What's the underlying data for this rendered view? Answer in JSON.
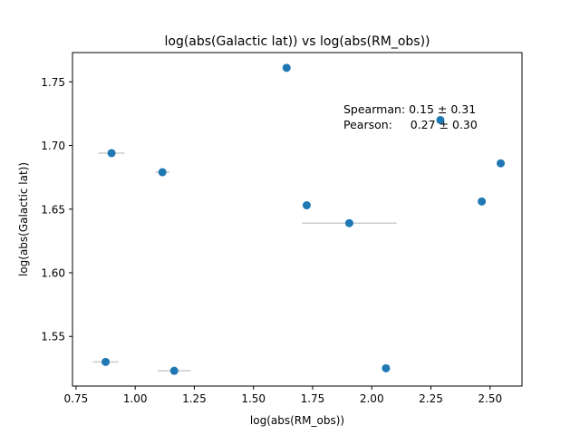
{
  "chart_data": {
    "type": "scatter",
    "title": "log(abs(Galactic lat)) vs log(abs(RM_obs))",
    "xlabel": "log(abs(RM_obs))",
    "ylabel": "log(abs(Galactic lat))",
    "xlim": [
      0.735,
      2.635
    ],
    "ylim": [
      1.511,
      1.773
    ],
    "xticks": [
      0.75,
      1.0,
      1.25,
      1.5,
      1.75,
      2.0,
      2.25,
      2.5
    ],
    "xtick_labels": [
      "0.75",
      "1.00",
      "1.25",
      "1.50",
      "1.75",
      "2.00",
      "2.25",
      "2.50"
    ],
    "yticks": [
      1.55,
      1.6,
      1.65,
      1.7,
      1.75
    ],
    "ytick_labels": [
      "1.55",
      "1.60",
      "1.65",
      "1.70",
      "1.75"
    ],
    "grid": false,
    "marker_color": "#1f77b4",
    "errorbar_color": "#cccccc",
    "points": [
      {
        "x": 0.9,
        "y": 1.694,
        "xerr": 0.055
      },
      {
        "x": 1.115,
        "y": 1.679,
        "xerr": 0.03
      },
      {
        "x": 1.64,
        "y": 1.761,
        "xerr": 0
      },
      {
        "x": 1.725,
        "y": 1.653,
        "xerr": 0
      },
      {
        "x": 1.905,
        "y": 1.639,
        "xerr": 0.2
      },
      {
        "x": 2.29,
        "y": 1.72,
        "xerr": 0
      },
      {
        "x": 2.465,
        "y": 1.656,
        "xerr": 0
      },
      {
        "x": 2.545,
        "y": 1.686,
        "xerr": 0
      },
      {
        "x": 0.875,
        "y": 1.53,
        "xerr": 0.055
      },
      {
        "x": 1.165,
        "y": 1.523,
        "xerr": 0.07
      },
      {
        "x": 2.06,
        "y": 1.525,
        "xerr": 0
      }
    ],
    "annotations": {
      "spearman": "Spearman: 0.15 ± 0.31",
      "pearson": "Pearson:     0.27 ± 0.30"
    }
  }
}
